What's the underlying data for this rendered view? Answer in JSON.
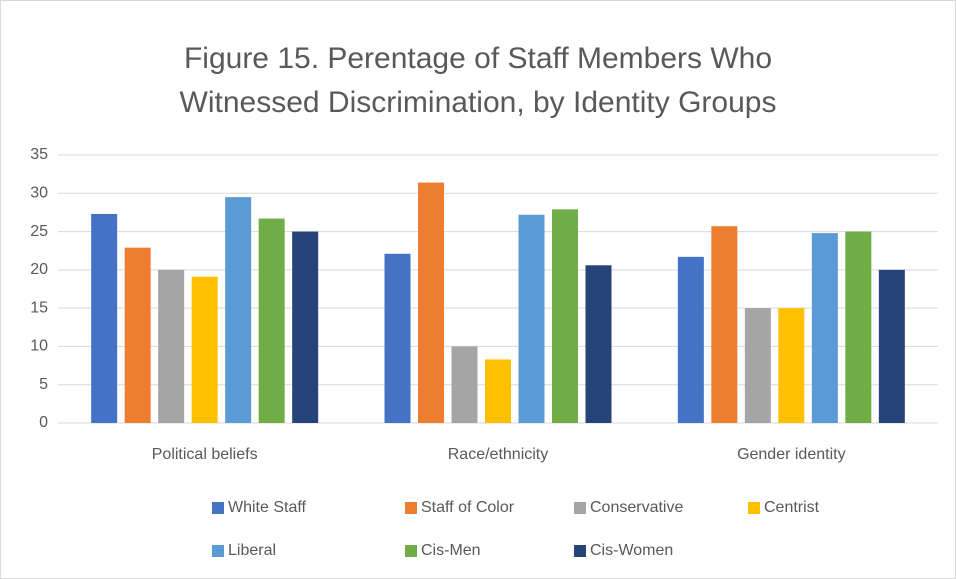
{
  "chart_data": {
    "type": "bar",
    "title": "Figure 15. Perentage of Staff Members Who Witnessed Discrimination, by Identity Groups",
    "title_lines": [
      "Figure 15. Perentage of Staff Members Who",
      "Witnessed Discrimination, by Identity Groups"
    ],
    "categories": [
      "Political beliefs",
      "Race/ethnicity",
      "Gender identity"
    ],
    "series": [
      {
        "name": "White Staff",
        "color": "#4472c4",
        "values": [
          27.3,
          22.1,
          21.7
        ]
      },
      {
        "name": "Staff of Color",
        "color": "#ed7d31",
        "values": [
          22.9,
          31.4,
          25.7
        ]
      },
      {
        "name": "Conservative",
        "color": "#a5a5a5",
        "values": [
          20,
          10,
          15
        ]
      },
      {
        "name": "Centrist",
        "color": "#ffc000",
        "values": [
          19.1,
          8.3,
          15
        ]
      },
      {
        "name": "Liberal",
        "color": "#5b9bd5",
        "values": [
          29.5,
          27.2,
          24.8
        ]
      },
      {
        "name": "Cis-Men",
        "color": "#70ad47",
        "values": [
          26.7,
          27.9,
          25
        ]
      },
      {
        "name": "Cis-Women",
        "color": "#264478",
        "values": [
          25,
          20.6,
          20
        ]
      }
    ],
    "ylim": [
      0,
      35
    ],
    "yticks": [
      0,
      5,
      10,
      15,
      20,
      25,
      30,
      35
    ],
    "grid": true,
    "legend": "bottom"
  }
}
